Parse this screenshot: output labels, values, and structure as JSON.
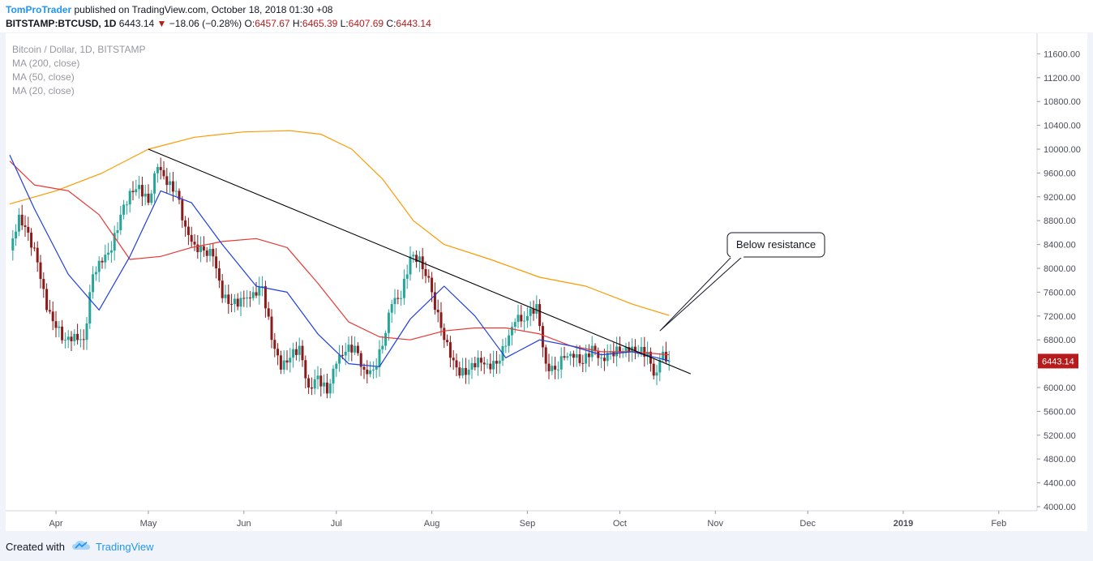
{
  "header": {
    "author": "TomProTrader",
    "published_text": " published on TradingView.com, October 18, 2018 01:30 +08",
    "symbol": "BITSTAMP:BTCUSD, 1D",
    "last": "6443.14",
    "change": "−18.06 (−0.28%)",
    "o_label": "O:",
    "o_value": "6457.67",
    "h_label": "H:",
    "h_value": "6465.39",
    "l_label": "L:",
    "l_value": "6407.69",
    "c_label": "C:",
    "c_value": "6443.14"
  },
  "legend": {
    "title": "Bitcoin / Dollar, 1D, BITSTAMP",
    "ma200": "MA (200, close)",
    "ma50": "MA (50, close)",
    "ma20": "MA (20, close)"
  },
  "annotation": {
    "text": "Below resistance"
  },
  "price_label": "6443.14",
  "footer": {
    "created_with": "Created with",
    "brand": "TradingView"
  },
  "colors": {
    "up": "#26a69a",
    "down": "#8b1a1a",
    "ma200": "#ff9800",
    "ma50": "#e53935",
    "ma20": "#1e3de0",
    "trendline": "#000000",
    "price_tag": "#b71c1c"
  },
  "chart_data": {
    "type": "line",
    "x_ticks": [
      "Apr",
      "May",
      "Jun",
      "Jul",
      "Aug",
      "Sep",
      "Oct",
      "Nov",
      "Dec",
      "2019",
      "Feb"
    ],
    "x_tick_dates": [
      "2018-04-01",
      "2018-05-01",
      "2018-06-01",
      "2018-07-01",
      "2018-08-01",
      "2018-09-01",
      "2018-10-01",
      "2018-11-01",
      "2018-12-01",
      "2019-01-01",
      "2019-02-01"
    ],
    "y_ticks": [
      "4000.00",
      "4400.00",
      "4800.00",
      "5200.00",
      "5600.00",
      "6000.00",
      "6400.00",
      "6800.00",
      "7200.00",
      "7600.00",
      "8000.00",
      "8400.00",
      "8800.00",
      "9200.00",
      "9600.00",
      "10000.00",
      "10400.00",
      "10800.00",
      "11200.00",
      "11600.00"
    ],
    "ylim": [
      3900,
      11900
    ],
    "close_series": [
      [
        "2018-03-17",
        8300
      ],
      [
        "2018-03-20",
        8900
      ],
      [
        "2018-03-23",
        8600
      ],
      [
        "2018-03-26",
        8100
      ],
      [
        "2018-03-29",
        7300
      ],
      [
        "2018-04-01",
        7000
      ],
      [
        "2018-04-04",
        6800
      ],
      [
        "2018-04-07",
        6900
      ],
      [
        "2018-04-10",
        6800
      ],
      [
        "2018-04-13",
        7900
      ],
      [
        "2018-04-16",
        8100
      ],
      [
        "2018-04-19",
        8300
      ],
      [
        "2018-04-22",
        8900
      ],
      [
        "2018-04-25",
        9300
      ],
      [
        "2018-04-28",
        9400
      ],
      [
        "2018-05-01",
        9100
      ],
      [
        "2018-05-04",
        9700
      ],
      [
        "2018-05-07",
        9400
      ],
      [
        "2018-05-10",
        9300
      ],
      [
        "2018-05-13",
        8700
      ],
      [
        "2018-05-16",
        8400
      ],
      [
        "2018-05-19",
        8300
      ],
      [
        "2018-05-22",
        8200
      ],
      [
        "2018-05-25",
        7500
      ],
      [
        "2018-05-28",
        7400
      ],
      [
        "2018-06-01",
        7500
      ],
      [
        "2018-06-04",
        7600
      ],
      [
        "2018-06-07",
        7700
      ],
      [
        "2018-06-10",
        6800
      ],
      [
        "2018-06-13",
        6300
      ],
      [
        "2018-06-16",
        6500
      ],
      [
        "2018-06-19",
        6700
      ],
      [
        "2018-06-22",
        6000
      ],
      [
        "2018-06-25",
        6200
      ],
      [
        "2018-06-28",
        5900
      ],
      [
        "2018-07-01",
        6400
      ],
      [
        "2018-07-04",
        6600
      ],
      [
        "2018-07-07",
        6700
      ],
      [
        "2018-07-10",
        6300
      ],
      [
        "2018-07-13",
        6300
      ],
      [
        "2018-07-16",
        6700
      ],
      [
        "2018-07-19",
        7400
      ],
      [
        "2018-07-22",
        7500
      ],
      [
        "2018-07-25",
        8200
      ],
      [
        "2018-07-28",
        8200
      ],
      [
        "2018-08-01",
        7600
      ],
      [
        "2018-08-04",
        7000
      ],
      [
        "2018-08-07",
        6500
      ],
      [
        "2018-08-10",
        6200
      ],
      [
        "2018-08-13",
        6300
      ],
      [
        "2018-08-16",
        6500
      ],
      [
        "2018-08-19",
        6400
      ],
      [
        "2018-08-22",
        6400
      ],
      [
        "2018-08-25",
        6700
      ],
      [
        "2018-08-28",
        7100
      ],
      [
        "2018-09-01",
        7200
      ],
      [
        "2018-09-04",
        7400
      ],
      [
        "2018-09-07",
        6400
      ],
      [
        "2018-09-10",
        6300
      ],
      [
        "2018-09-13",
        6500
      ],
      [
        "2018-09-16",
        6500
      ],
      [
        "2018-09-19",
        6400
      ],
      [
        "2018-09-22",
        6700
      ],
      [
        "2018-09-25",
        6500
      ],
      [
        "2018-09-28",
        6600
      ],
      [
        "2018-10-01",
        6600
      ],
      [
        "2018-10-04",
        6600
      ],
      [
        "2018-10-07",
        6600
      ],
      [
        "2018-10-10",
        6600
      ],
      [
        "2018-10-12",
        6200
      ],
      [
        "2018-10-15",
        6600
      ],
      [
        "2018-10-17",
        6443.14
      ]
    ],
    "series": [
      {
        "name": "MA (200, close)",
        "color": "#ff9800",
        "values": [
          [
            "2018-03-17",
            9080
          ],
          [
            "2018-04-01",
            9300
          ],
          [
            "2018-04-16",
            9600
          ],
          [
            "2018-05-01",
            10000
          ],
          [
            "2018-05-16",
            10200
          ],
          [
            "2018-06-01",
            10290
          ],
          [
            "2018-06-16",
            10310
          ],
          [
            "2018-06-26",
            10250
          ],
          [
            "2018-07-06",
            10000
          ],
          [
            "2018-07-16",
            9500
          ],
          [
            "2018-07-26",
            8800
          ],
          [
            "2018-08-05",
            8400
          ],
          [
            "2018-08-20",
            8150
          ],
          [
            "2018-09-05",
            7850
          ],
          [
            "2018-09-20",
            7700
          ],
          [
            "2018-10-05",
            7400
          ],
          [
            "2018-10-17",
            7210
          ]
        ]
      },
      {
        "name": "MA (50, close)",
        "color": "#e53935",
        "values": [
          [
            "2018-03-17",
            9800
          ],
          [
            "2018-03-25",
            9400
          ],
          [
            "2018-04-05",
            9300
          ],
          [
            "2018-04-15",
            8900
          ],
          [
            "2018-04-25",
            8150
          ],
          [
            "2018-05-05",
            8200
          ],
          [
            "2018-05-15",
            8350
          ],
          [
            "2018-05-25",
            8450
          ],
          [
            "2018-06-05",
            8500
          ],
          [
            "2018-06-15",
            8350
          ],
          [
            "2018-06-25",
            7750
          ],
          [
            "2018-07-05",
            7100
          ],
          [
            "2018-07-15",
            6850
          ],
          [
            "2018-07-25",
            6800
          ],
          [
            "2018-08-05",
            6950
          ],
          [
            "2018-08-15",
            7000
          ],
          [
            "2018-08-25",
            7000
          ],
          [
            "2018-09-05",
            6900
          ],
          [
            "2018-09-15",
            6700
          ],
          [
            "2018-09-25",
            6600
          ],
          [
            "2018-10-05",
            6600
          ],
          [
            "2018-10-17",
            6550
          ]
        ]
      },
      {
        "name": "MA (20, close)",
        "color": "#1e3de0",
        "values": [
          [
            "2018-03-17",
            9900
          ],
          [
            "2018-03-25",
            9000
          ],
          [
            "2018-04-05",
            7900
          ],
          [
            "2018-04-15",
            7300
          ],
          [
            "2018-04-25",
            8200
          ],
          [
            "2018-05-05",
            9300
          ],
          [
            "2018-05-15",
            9100
          ],
          [
            "2018-05-25",
            8400
          ],
          [
            "2018-06-05",
            7700
          ],
          [
            "2018-06-15",
            7600
          ],
          [
            "2018-06-25",
            6900
          ],
          [
            "2018-07-05",
            6400
          ],
          [
            "2018-07-15",
            6350
          ],
          [
            "2018-07-25",
            7150
          ],
          [
            "2018-08-05",
            7700
          ],
          [
            "2018-08-15",
            7200
          ],
          [
            "2018-08-25",
            6500
          ],
          [
            "2018-09-05",
            6800
          ],
          [
            "2018-09-15",
            6700
          ],
          [
            "2018-09-25",
            6550
          ],
          [
            "2018-10-05",
            6600
          ],
          [
            "2018-10-17",
            6450
          ]
        ]
      },
      {
        "name": "trendline",
        "color": "#000000",
        "values": [
          [
            "2018-05-01",
            10000
          ],
          [
            "2018-10-24",
            6230
          ]
        ]
      }
    ],
    "callout": {
      "label": "Below resistance",
      "anchor": [
        "2018-10-14",
        6950
      ]
    },
    "last_price": 6443.14,
    "grid": false,
    "legend_position": "top-left"
  }
}
